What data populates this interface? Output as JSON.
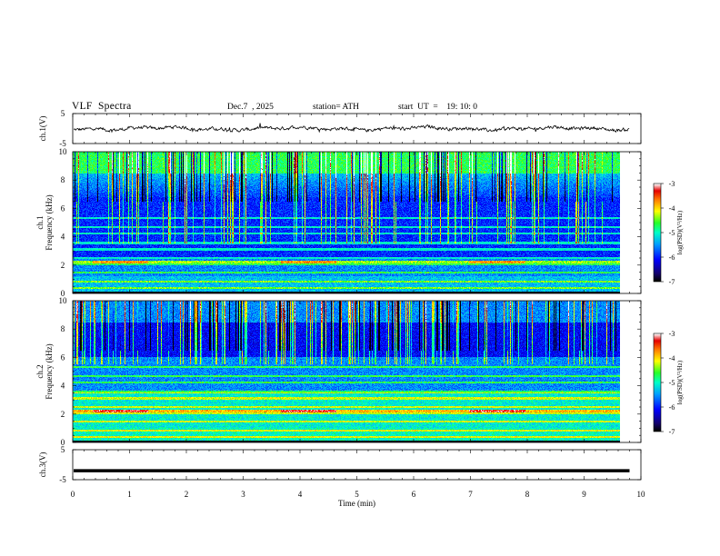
{
  "header": {
    "title": "VLF  Spectra",
    "date": "Dec.7  , 2025",
    "station": "station= ATH",
    "start_ut": "start  UT  =    19: 10: 0"
  },
  "colors": {
    "background": "#ffffff",
    "axis": "#000000",
    "trace": "#000000"
  },
  "chart_data": [
    {
      "id": "ch1-waveform",
      "type": "line",
      "ylabel": "ch.1(V)",
      "ylim": [
        -5,
        5
      ],
      "yticks": [
        "5",
        "-5"
      ],
      "x_range_min": [
        0,
        10
      ],
      "data_end_min": 9.8,
      "description_values": "noisy waveform centered near 0 V, amplitude roughly ±1 V"
    },
    {
      "id": "ch1-spectrogram",
      "type": "heatmap",
      "ylabel": "ch.1\nFrequency (kHz)",
      "ylabel_lines": [
        "ch.1",
        "Frequency  (kHz)"
      ],
      "ylim": [
        0,
        10
      ],
      "yticks": [
        "0",
        "2",
        "4",
        "6",
        "8",
        "10"
      ],
      "x_range_min": [
        0,
        10
      ],
      "data_end_min": 9.8,
      "colorbar": {
        "label": "log(PSD)(V²/Hz)",
        "range": [
          -7,
          -3
        ],
        "ticks": [
          "-3",
          "-4",
          "-5",
          "-6",
          "-7"
        ]
      }
    },
    {
      "id": "ch2-spectrogram",
      "type": "heatmap",
      "ylabel_lines": [
        "ch.2",
        "Frequency  (kHz)"
      ],
      "ylim": [
        0,
        10
      ],
      "yticks": [
        "0",
        "2",
        "4",
        "6",
        "8",
        "10"
      ],
      "x_range_min": [
        0,
        10
      ],
      "data_end_min": 9.8,
      "colorbar": {
        "label": "log(PSD)(V²/Hz)",
        "range": [
          -7,
          -3
        ],
        "ticks": [
          "-3",
          "-4",
          "-5",
          "-6",
          "-7"
        ]
      }
    },
    {
      "id": "ch3-waveform",
      "type": "line",
      "ylabel": "ch.3(V)",
      "ylim": [
        -5,
        5
      ],
      "yticks": [
        "5",
        "-5"
      ],
      "x_range_min": [
        0,
        10
      ],
      "data_end_min": 9.8,
      "description_values": "flat trace near -2 V"
    }
  ],
  "xaxis": {
    "label": "Time  (min)",
    "ticks": [
      "0",
      "1",
      "2",
      "3",
      "4",
      "5",
      "6",
      "7",
      "8",
      "9",
      "10"
    ]
  }
}
